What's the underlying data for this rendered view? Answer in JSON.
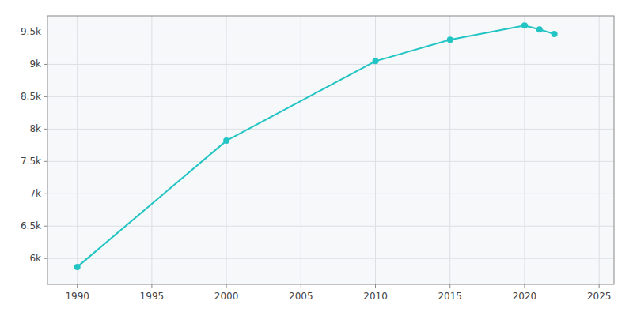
{
  "chart_data": {
    "type": "line",
    "x": [
      1990,
      2000,
      2010,
      2015,
      2020,
      2021,
      2022
    ],
    "values": [
      5870,
      7820,
      9050,
      9380,
      9600,
      9540,
      9470
    ],
    "color": "#22c4c4",
    "marker": "circle",
    "xlim": [
      1988,
      2026
    ],
    "ylim": [
      5600,
      9750
    ],
    "xticks": [
      1990,
      1995,
      2000,
      2005,
      2010,
      2015,
      2020,
      2025
    ],
    "yticks": [
      {
        "value": 6000,
        "label": "6k"
      },
      {
        "value": 6500,
        "label": "6.5k"
      },
      {
        "value": 7000,
        "label": "7k"
      },
      {
        "value": 7500,
        "label": "7.5k"
      },
      {
        "value": 8000,
        "label": "8k"
      },
      {
        "value": 8500,
        "label": "8.5k"
      },
      {
        "value": 9000,
        "label": "9k"
      },
      {
        "value": 9500,
        "label": "9.5k"
      }
    ],
    "grid": true
  }
}
